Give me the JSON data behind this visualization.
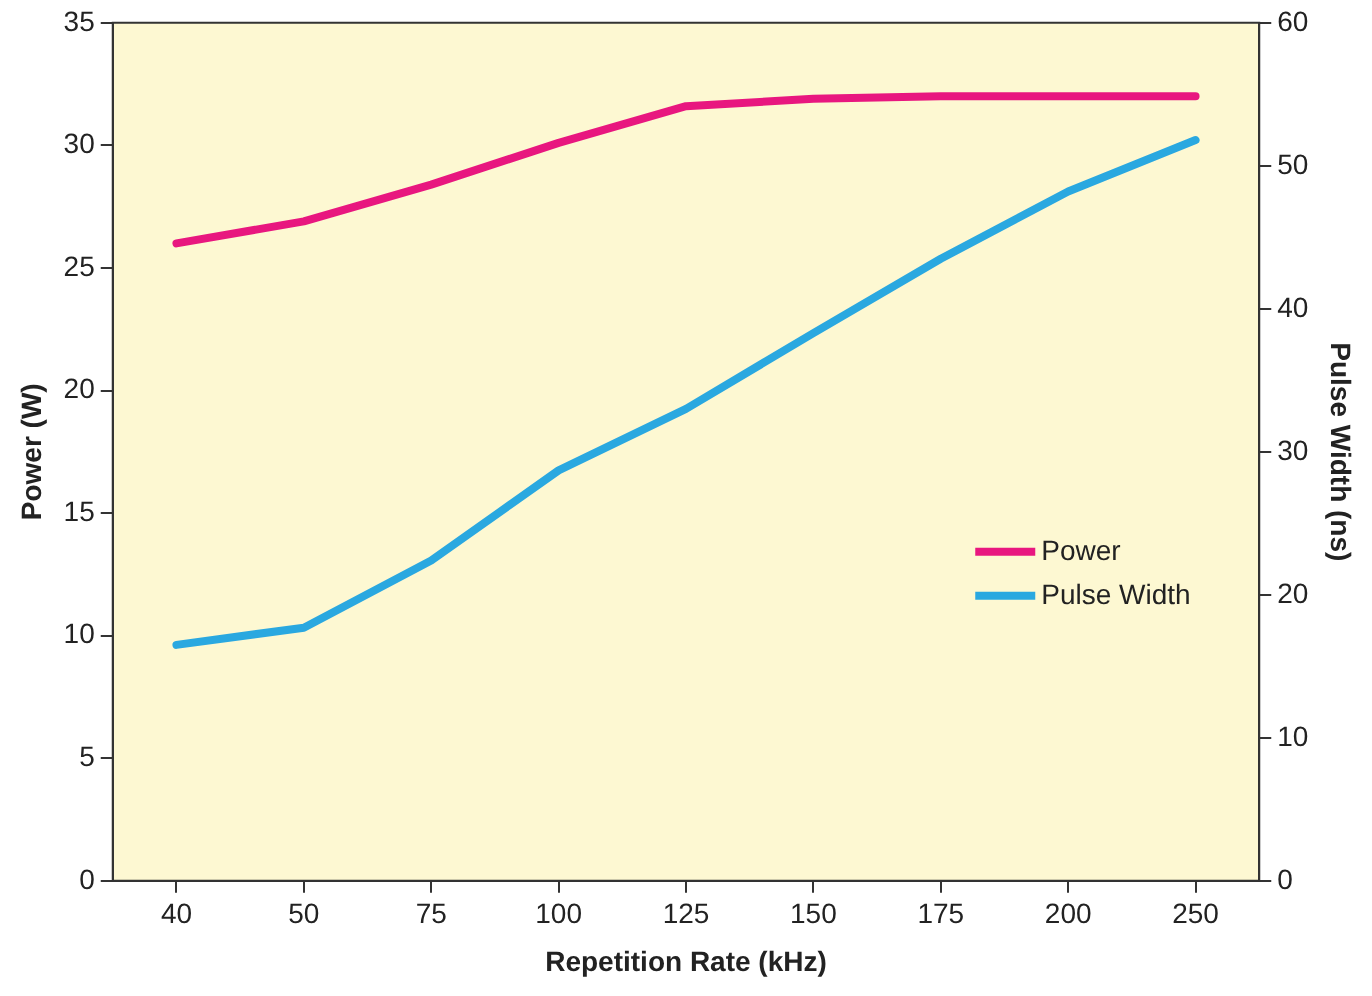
{
  "chart_data": {
    "type": "line",
    "xlabel": "Repetition Rate (kHz)",
    "ylabel": "Power (W)",
    "y2label": "Pulse Width (ns)",
    "categories": [
      "40",
      "50",
      "75",
      "100",
      "125",
      "150",
      "175",
      "200",
      "250"
    ],
    "series": [
      {
        "name": "Power",
        "color": "#e8177f",
        "values": [
          26,
          26.9,
          28.4,
          30.1,
          31.6,
          31.9,
          32,
          32,
          32
        ]
      },
      {
        "name": "Pulse Width",
        "color": "#2aa8e0",
        "axis": "y2",
        "values": [
          16.5,
          17.7,
          22.4,
          28.7,
          33,
          38.3,
          43.5,
          48.2,
          51.8
        ]
      }
    ],
    "ylim": [
      0,
      35
    ],
    "yticks": [
      0,
      5,
      10,
      15,
      20,
      25,
      30,
      35
    ],
    "y2lim": [
      0,
      60
    ],
    "y2ticks": [
      0,
      10,
      20,
      30,
      40,
      50,
      60
    ],
    "grid": false,
    "legend": "right",
    "marker": "none",
    "line_style": "solid"
  }
}
